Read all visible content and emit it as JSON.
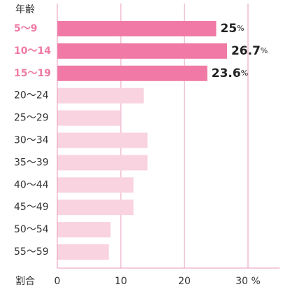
{
  "chart_data": {
    "type": "barh",
    "y_label": "年齢",
    "x_label": "割合",
    "categories": [
      "5～9",
      "10～14",
      "15～19",
      "20～24",
      "25～29",
      "30～34",
      "35～39",
      "40～44",
      "45～49",
      "50～54",
      "55～59"
    ],
    "values": [
      25,
      26.7,
      23.6,
      13.6,
      9.9,
      14.2,
      14.2,
      12.0,
      12.0,
      8.4,
      8.1
    ],
    "value_labels": [
      "25%",
      "26.7%",
      "23.6%",
      null,
      null,
      null,
      null,
      null,
      null,
      null,
      null
    ],
    "color": "#f9d3df",
    "highlight_color": "#f07aa5",
    "highlight": [
      0,
      1,
      2
    ],
    "xlim": [
      0,
      35
    ],
    "xticks": [
      0,
      10,
      20,
      {
        "value": 30,
        "label": "30 %"
      }
    ],
    "grid": true
  }
}
